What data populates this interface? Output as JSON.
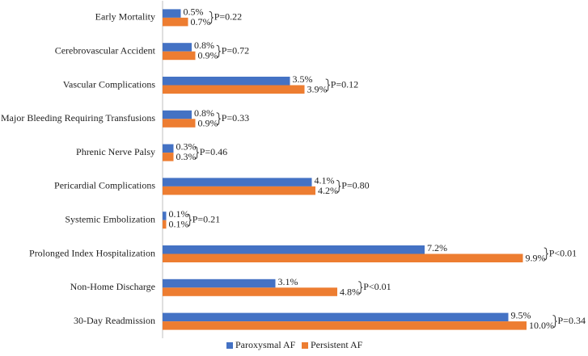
{
  "chart_data": {
    "type": "bar",
    "orientation": "horizontal",
    "title": "",
    "xlabel": "",
    "ylabel": "",
    "xlim": [
      0,
      10.5
    ],
    "grid": false,
    "legend_position": "bottom",
    "categories": [
      "Early Mortality",
      "Cerebrovascular Accident",
      "Vascular Complications",
      "Major Bleeding Requiring Transfusions",
      "Phrenic Nerve Palsy",
      "Pericardial Complications",
      "Systemic Embolization",
      "Prolonged Index Hospitalization",
      "Non-Home Discharge",
      "30-Day Readmission"
    ],
    "series": [
      {
        "name": "Paroxysmal AF",
        "color": "#4472C4",
        "values": [
          0.5,
          0.8,
          3.5,
          0.8,
          0.3,
          4.1,
          0.1,
          7.2,
          3.1,
          9.5
        ],
        "labels": [
          "0.5%",
          "0.8%",
          "3.5%",
          "0.8%",
          "0.3%",
          "4.1%",
          "0.1%",
          "7.2%",
          "3.1%",
          "9.5%"
        ]
      },
      {
        "name": "Persistent AF",
        "color": "#ED7D31",
        "values": [
          0.7,
          0.9,
          3.9,
          0.9,
          0.3,
          4.2,
          0.1,
          9.9,
          4.8,
          10.0
        ],
        "labels": [
          "0.7%",
          "0.9%",
          "3.9%",
          "0.9%",
          "0.3%",
          "4.2%",
          "0.1%",
          "9.9%",
          "4.8%",
          "10.0%"
        ]
      }
    ],
    "p_values": [
      "P=0.22",
      "P=0.72",
      "P=0.12",
      "P=0.33",
      "P=0.46",
      "P=0.80",
      "P=0.21",
      "P<0.01",
      "P<0.01",
      "P=0.34"
    ],
    "axis_color": "#bfbfbf"
  }
}
